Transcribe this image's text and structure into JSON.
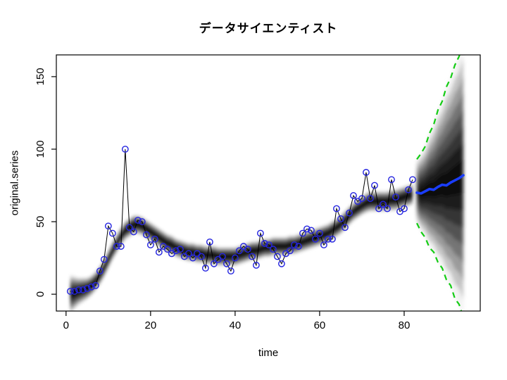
{
  "figure": {
    "background": "#ffffff"
  },
  "chart_data": {
    "type": "line",
    "title": "データサイエンティスト",
    "xlabel": "time",
    "ylabel": "original.series",
    "xlim": [
      -2.3,
      98
    ],
    "ylim": [
      -11.6,
      165
    ],
    "xticks": [
      0,
      20,
      40,
      60,
      80
    ],
    "yticks": [
      0,
      50,
      100,
      150
    ],
    "grid": false,
    "legend": "none",
    "observations": {
      "name": "original-series-points",
      "x_start": 1,
      "y": [
        2,
        2,
        3,
        3,
        4,
        5,
        6,
        16,
        24,
        47,
        42,
        33,
        33,
        100,
        46,
        43,
        51,
        50,
        41,
        34,
        38,
        29,
        33,
        31,
        28,
        30,
        31,
        26,
        28,
        25,
        28,
        26,
        18,
        36,
        21,
        24,
        26,
        21,
        16,
        25,
        30,
        33,
        31,
        26,
        20,
        42,
        35,
        34,
        31,
        26,
        21,
        28,
        30,
        34,
        33,
        42,
        45,
        44,
        38,
        42,
        34,
        38,
        38,
        59,
        52,
        46,
        56,
        68,
        64,
        66,
        84,
        66,
        75,
        59,
        62,
        59,
        79,
        67,
        57,
        59,
        72,
        79
      ]
    },
    "state_band": {
      "name": "posterior-state-density",
      "x_start": 1,
      "center": [
        0,
        1,
        2,
        3,
        4,
        6,
        9,
        13,
        18,
        24,
        30,
        35,
        40,
        44,
        46,
        48,
        48,
        47,
        45,
        43,
        41,
        39,
        37,
        35,
        34,
        32,
        31,
        30,
        29,
        29,
        28,
        28,
        27,
        27,
        27,
        26,
        26,
        26,
        26,
        26,
        27,
        28,
        29,
        30,
        30,
        31,
        32,
        32,
        33,
        33,
        33,
        33,
        34,
        34,
        35,
        36,
        37,
        38,
        39,
        40,
        41,
        42,
        44,
        46,
        48,
        51,
        54,
        57,
        59,
        61,
        63,
        64,
        64,
        64,
        64,
        64,
        65,
        65,
        66,
        67,
        68,
        69
      ],
      "halfwidth": [
        14,
        12,
        10,
        9,
        8,
        7.5,
        7,
        7,
        7,
        7,
        7,
        7,
        7,
        7,
        7,
        7,
        7,
        7,
        7,
        7,
        7,
        7,
        7,
        7,
        7,
        7,
        7,
        7,
        7,
        7,
        7,
        7,
        7,
        7,
        7,
        7,
        7,
        7,
        7,
        7,
        7,
        7,
        7,
        7,
        7,
        7,
        7,
        7,
        7,
        7,
        7,
        7,
        7,
        7,
        7,
        7,
        7,
        7,
        7,
        7,
        7,
        7,
        7,
        7,
        7,
        7,
        7,
        7,
        7,
        7,
        7.5,
        7.5,
        7.5,
        7.5,
        7.5,
        7.5,
        8,
        8,
        8,
        8,
        8,
        8
      ]
    },
    "forecast": {
      "name": "prediction-fan",
      "x_start": 83,
      "median": [
        70,
        69.5,
        71,
        72.5,
        72,
        74,
        75.5,
        75,
        77,
        78.5,
        80,
        82
      ],
      "upper": [
        93,
        97,
        102,
        111,
        117,
        127,
        133,
        143,
        149,
        158,
        164,
        174
      ],
      "lower": [
        49,
        43,
        39,
        32,
        29,
        22,
        18,
        10,
        6,
        -3,
        -7,
        -16
      ]
    },
    "styles": {
      "point_color": "#2424e0",
      "point_line_color": "#000000",
      "median_color": "#1a3dff",
      "interval_color": "#14cc14",
      "band_core_color": "#000000",
      "axis_color": "#000000"
    }
  }
}
